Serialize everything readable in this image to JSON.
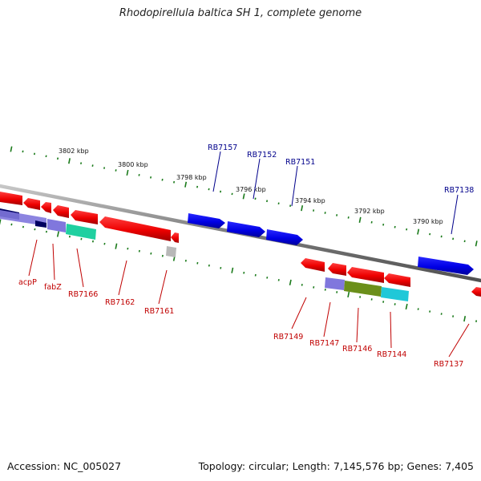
{
  "title": "Rhodopirellula baltica SH 1, complete genome",
  "footer": {
    "accession": "Accession: NC_005027",
    "summary": "Topology: circular; Length: 7,145,576 bp; Genes: 7,405"
  },
  "ruler_labels": [
    "3802 kbp",
    "3800 kbp",
    "3798 kbp",
    "3796 kbp",
    "3794 kbp",
    "3792 kbp",
    "3790 kbp"
  ],
  "upper_gene_labels": [
    "RB7157",
    "RB7152",
    "RB7151",
    "RB7138"
  ],
  "lower_gene_labels": [
    "acpP",
    "fabZ",
    "RB7166",
    "RB7162",
    "RB7161",
    "RB7149",
    "RB7147",
    "RB7146",
    "RB7144",
    "RB7137"
  ],
  "colors": {
    "backbone": "#8c8c8c",
    "forward_gene": "#0000e6",
    "reverse_gene": "#ee0000",
    "ruler_tick": "#1a7a1a",
    "label_upper": "#00008b",
    "label_lower": "#c00000",
    "feature_lavender": "#8077dd",
    "feature_navy": "#000060",
    "feature_teal": "#20d0a0",
    "feature_olive": "#6b8f1a",
    "feature_cyan": "#20c8d8",
    "feature_grey": "#b8b8b8"
  }
}
